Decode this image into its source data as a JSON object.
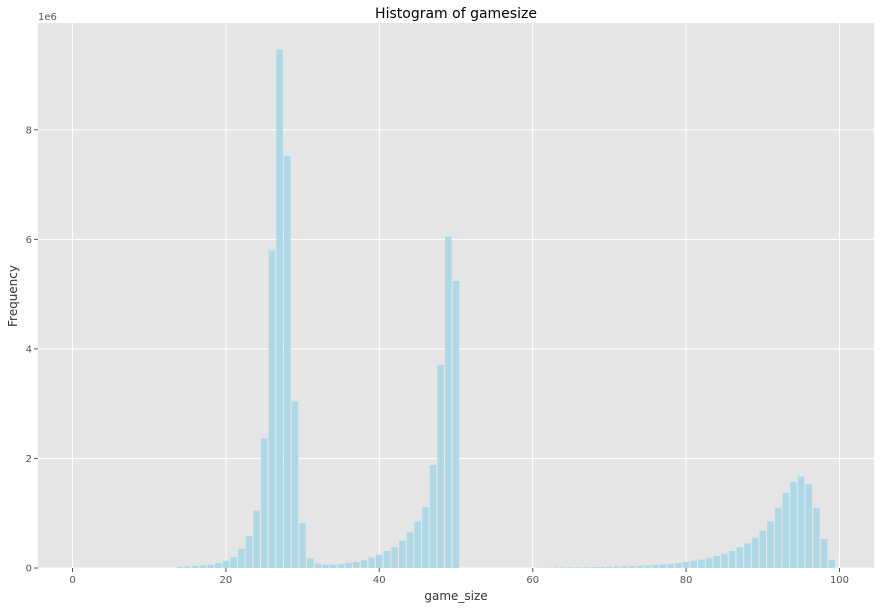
{
  "chart_data": {
    "type": "bar",
    "title": "Histogram of gamesize",
    "xlabel": "game_size",
    "ylabel": "Frequency",
    "y_scale_label": "1e6",
    "x_ticks": [
      "0",
      "20",
      "40",
      "60",
      "80",
      "100"
    ],
    "y_ticks": [
      "0",
      "2",
      "4",
      "6",
      "8"
    ],
    "xlim": [
      -4.5,
      104.5
    ],
    "ylim": [
      0,
      9.95
    ],
    "grid": true,
    "bar_color": "#add8e6",
    "background": "#e5e5e5",
    "grid_color": "#ffffff",
    "bins": [
      {
        "x": 14,
        "y": 0.02
      },
      {
        "x": 15,
        "y": 0.03
      },
      {
        "x": 16,
        "y": 0.04
      },
      {
        "x": 17,
        "y": 0.05
      },
      {
        "x": 18,
        "y": 0.06
      },
      {
        "x": 19,
        "y": 0.09
      },
      {
        "x": 20,
        "y": 0.13
      },
      {
        "x": 21,
        "y": 0.2
      },
      {
        "x": 22,
        "y": 0.35
      },
      {
        "x": 23,
        "y": 0.58
      },
      {
        "x": 24,
        "y": 1.05
      },
      {
        "x": 25,
        "y": 2.37
      },
      {
        "x": 26,
        "y": 5.8
      },
      {
        "x": 27,
        "y": 9.46
      },
      {
        "x": 28,
        "y": 7.52
      },
      {
        "x": 29,
        "y": 3.04
      },
      {
        "x": 30,
        "y": 0.82
      },
      {
        "x": 31,
        "y": 0.18
      },
      {
        "x": 32,
        "y": 0.08
      },
      {
        "x": 33,
        "y": 0.06
      },
      {
        "x": 34,
        "y": 0.06
      },
      {
        "x": 35,
        "y": 0.07
      },
      {
        "x": 36,
        "y": 0.09
      },
      {
        "x": 37,
        "y": 0.11
      },
      {
        "x": 38,
        "y": 0.14
      },
      {
        "x": 39,
        "y": 0.19
      },
      {
        "x": 40,
        "y": 0.24
      },
      {
        "x": 41,
        "y": 0.31
      },
      {
        "x": 42,
        "y": 0.38
      },
      {
        "x": 43,
        "y": 0.5
      },
      {
        "x": 44,
        "y": 0.65
      },
      {
        "x": 45,
        "y": 0.85
      },
      {
        "x": 46,
        "y": 1.11
      },
      {
        "x": 47,
        "y": 1.88
      },
      {
        "x": 48,
        "y": 3.71
      },
      {
        "x": 49,
        "y": 6.05
      },
      {
        "x": 50,
        "y": 5.24
      },
      {
        "x": 61,
        "y": 0.005
      },
      {
        "x": 62,
        "y": 0.006
      },
      {
        "x": 63,
        "y": 0.008
      },
      {
        "x": 64,
        "y": 0.009
      },
      {
        "x": 65,
        "y": 0.01
      },
      {
        "x": 66,
        "y": 0.012
      },
      {
        "x": 67,
        "y": 0.014
      },
      {
        "x": 68,
        "y": 0.017
      },
      {
        "x": 69,
        "y": 0.02
      },
      {
        "x": 70,
        "y": 0.023
      },
      {
        "x": 71,
        "y": 0.027
      },
      {
        "x": 72,
        "y": 0.03
      },
      {
        "x": 73,
        "y": 0.035
      },
      {
        "x": 74,
        "y": 0.04
      },
      {
        "x": 75,
        "y": 0.047
      },
      {
        "x": 76,
        "y": 0.055
      },
      {
        "x": 77,
        "y": 0.065
      },
      {
        "x": 78,
        "y": 0.075
      },
      {
        "x": 79,
        "y": 0.09
      },
      {
        "x": 80,
        "y": 0.11
      },
      {
        "x": 81,
        "y": 0.13
      },
      {
        "x": 82,
        "y": 0.155
      },
      {
        "x": 83,
        "y": 0.185
      },
      {
        "x": 84,
        "y": 0.22
      },
      {
        "x": 85,
        "y": 0.26
      },
      {
        "x": 86,
        "y": 0.31
      },
      {
        "x": 87,
        "y": 0.38
      },
      {
        "x": 88,
        "y": 0.45
      },
      {
        "x": 89,
        "y": 0.55
      },
      {
        "x": 90,
        "y": 0.68
      },
      {
        "x": 91,
        "y": 0.85
      },
      {
        "x": 92,
        "y": 1.1
      },
      {
        "x": 93,
        "y": 1.37
      },
      {
        "x": 94,
        "y": 1.57
      },
      {
        "x": 95,
        "y": 1.67
      },
      {
        "x": 96,
        "y": 1.53
      },
      {
        "x": 97,
        "y": 1.1
      },
      {
        "x": 98,
        "y": 0.53
      },
      {
        "x": 99,
        "y": 0.15
      }
    ]
  }
}
